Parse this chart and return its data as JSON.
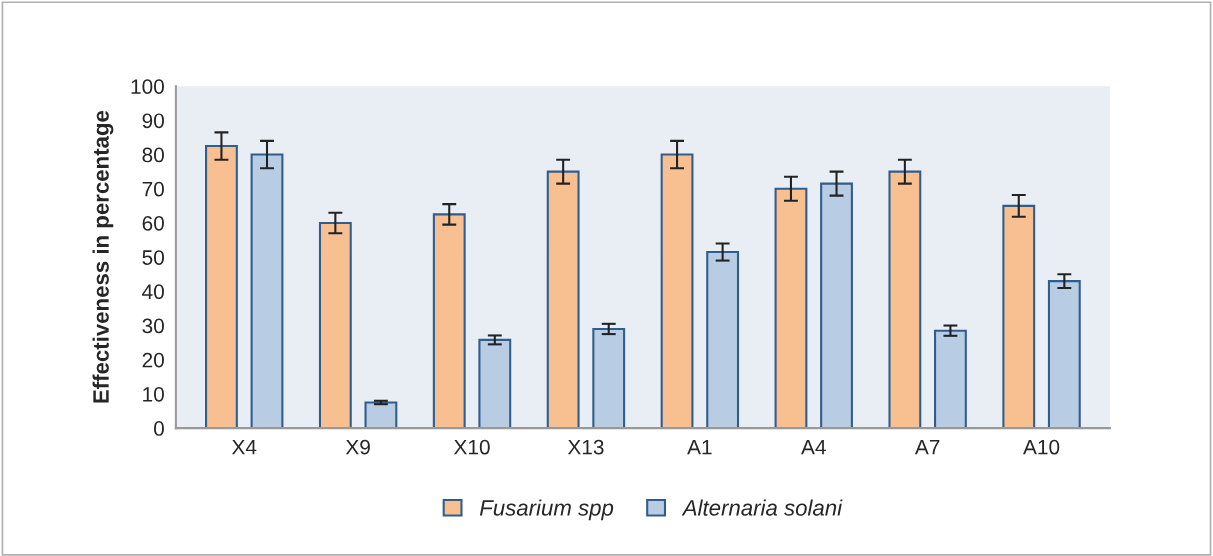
{
  "chart_data": {
    "type": "bar",
    "ylabel": "Effectiveness in percentage",
    "categories": [
      "X4",
      "X9",
      "X10",
      "X13",
      "A1",
      "A4",
      "A7",
      "A10"
    ],
    "series": [
      {
        "name": "Fusarium spp",
        "color": "#f8c090",
        "values": [
          82.5,
          60,
          62.5,
          75,
          80,
          70,
          75,
          65
        ],
        "errors": [
          4,
          3,
          3,
          3.5,
          4,
          3.5,
          3.5,
          3.2
        ]
      },
      {
        "name": "Alternaria solani",
        "color": "#b8cce4",
        "values": [
          80,
          7.5,
          25.8,
          29,
          51.5,
          71.5,
          28.5,
          43
        ],
        "errors": [
          4,
          0.5,
          1.3,
          1.5,
          2.5,
          3.5,
          1.5,
          2
        ]
      }
    ],
    "ylim": [
      0,
      100
    ],
    "yticks": [
      0,
      10,
      20,
      30,
      40,
      50,
      60,
      70,
      80,
      90,
      100
    ],
    "grid": false,
    "legend": "bottom"
  }
}
